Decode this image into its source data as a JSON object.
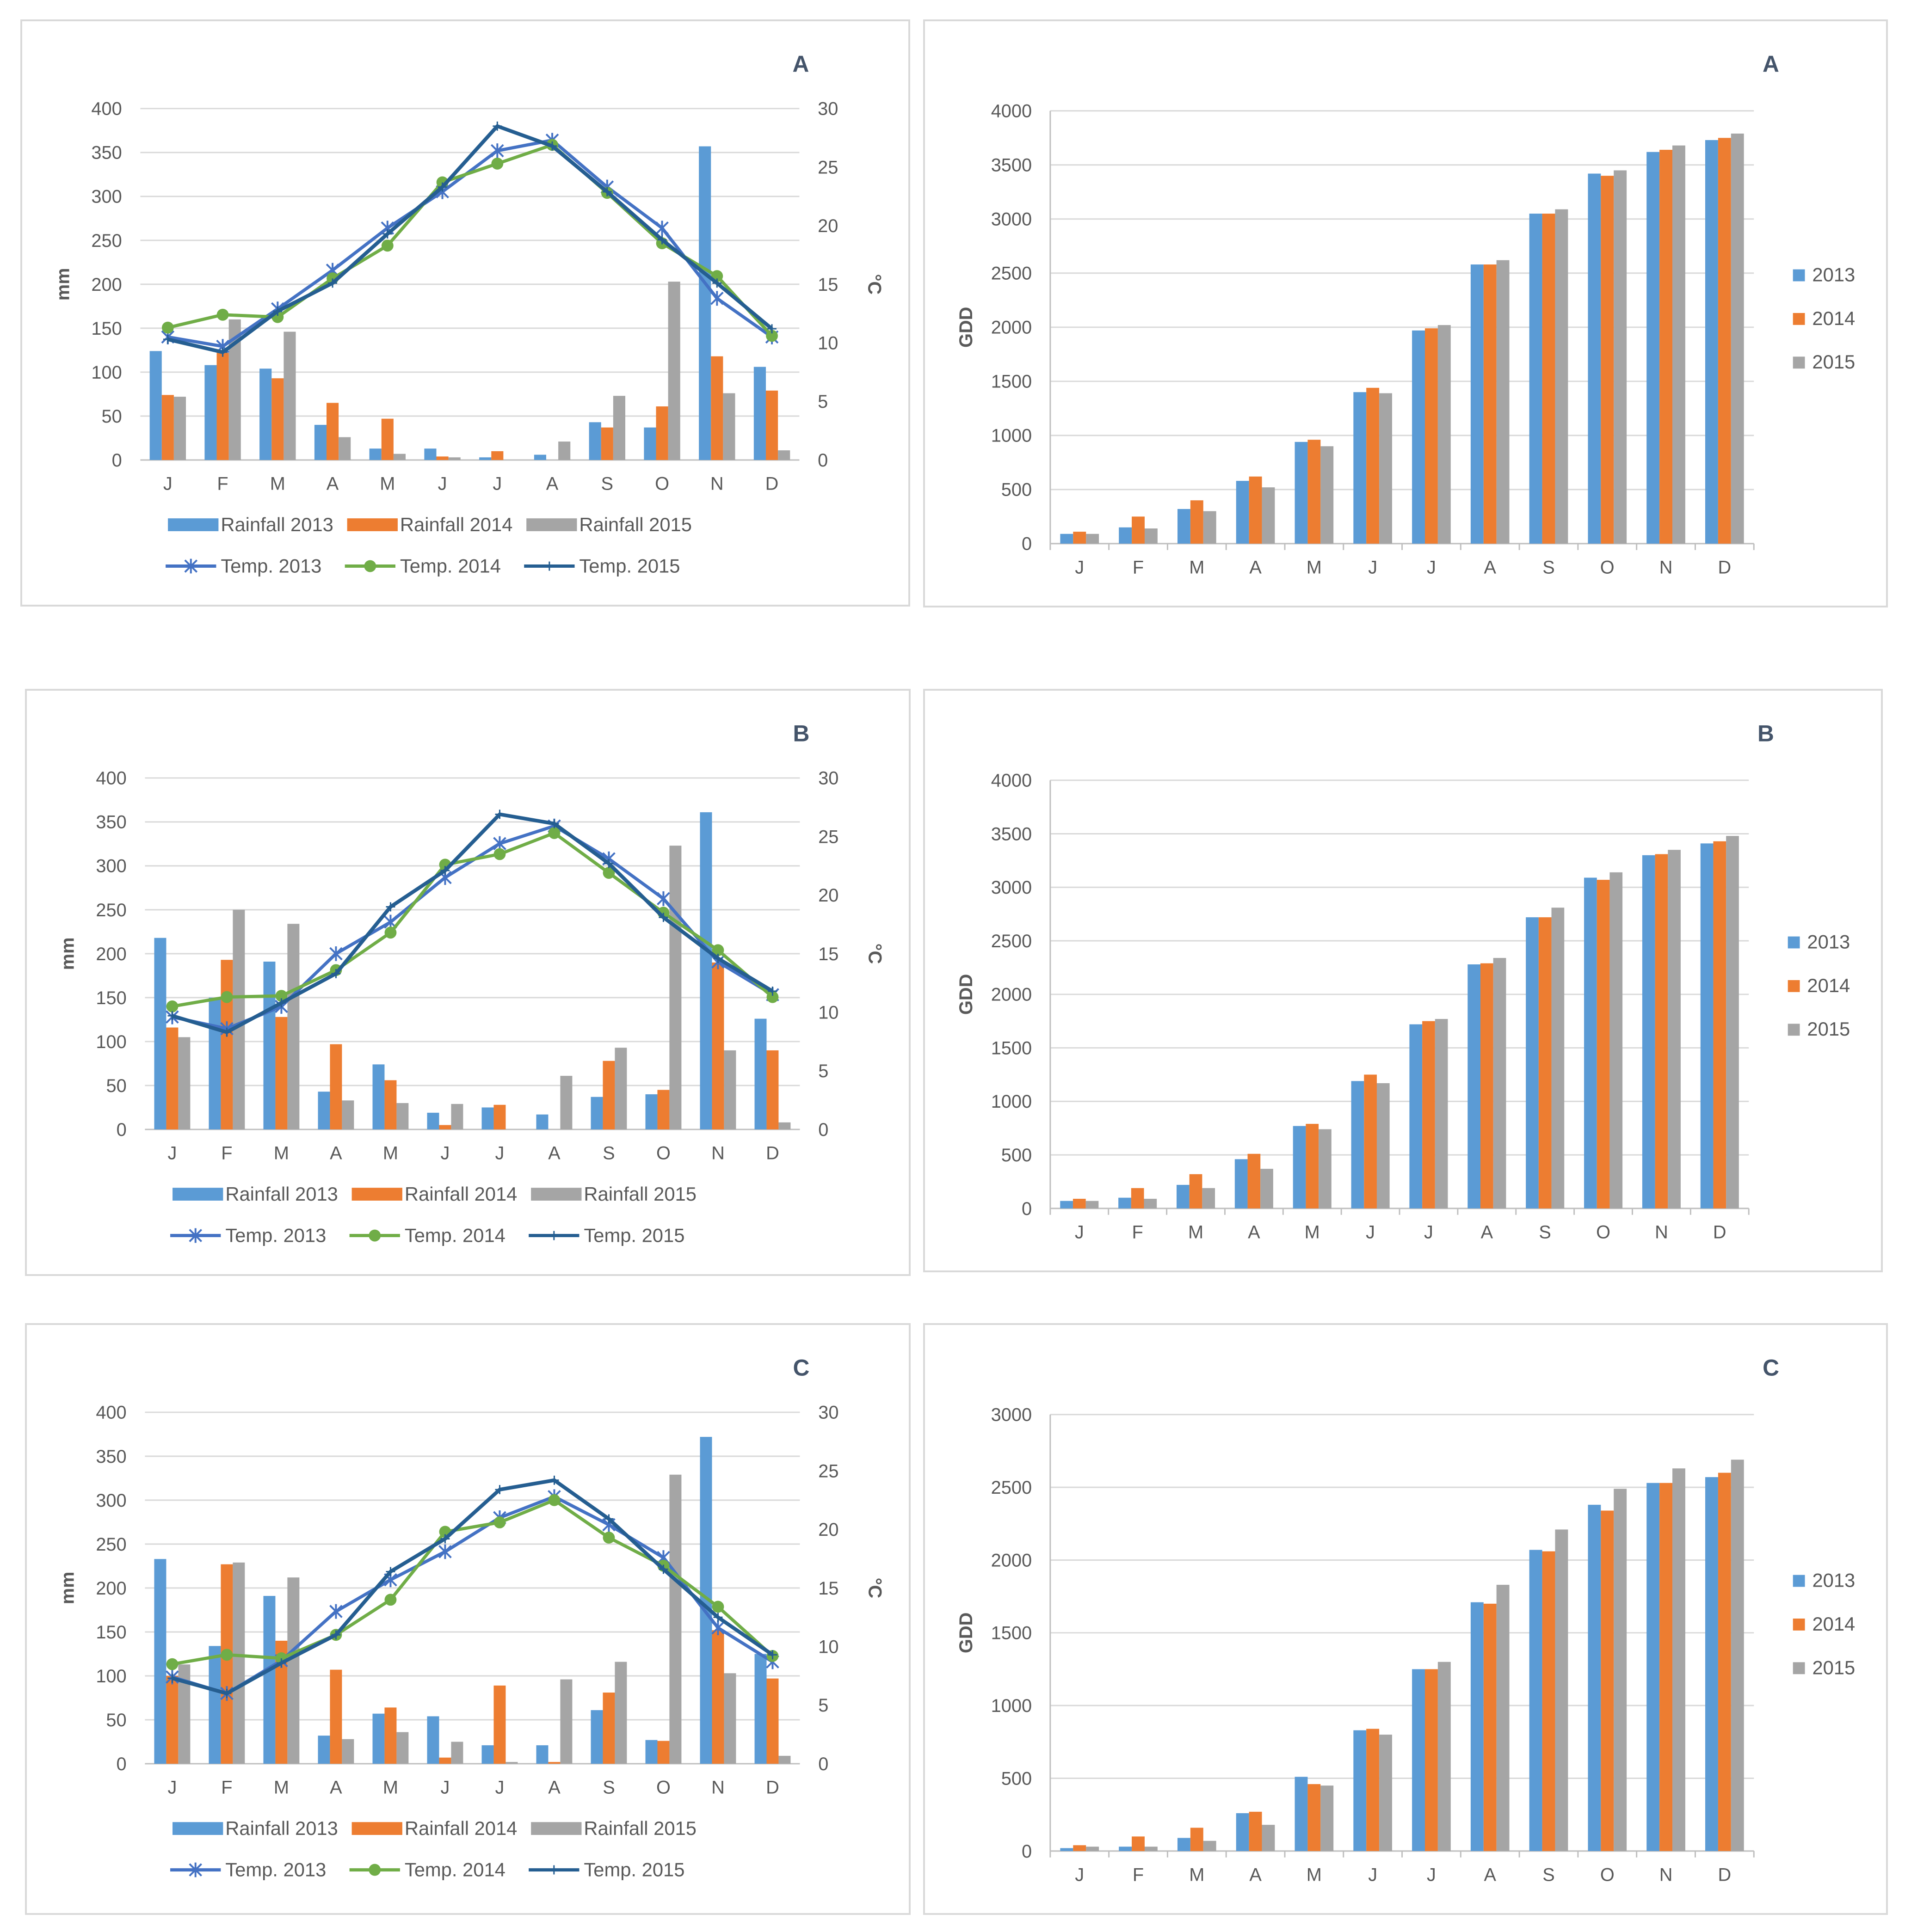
{
  "chart_data": [
    {
      "type": "bar+line",
      "panel_label": "A",
      "categories": [
        "J",
        "F",
        "M",
        "A",
        "M",
        "J",
        "J",
        "A",
        "S",
        "O",
        "N",
        "D"
      ],
      "ylabel": "mm",
      "y2label": "°C",
      "ylim": [
        0,
        400
      ],
      "y2lim": [
        0,
        30
      ],
      "yticks": [
        "0",
        "50",
        "100",
        "150",
        "200",
        "250",
        "300",
        "350",
        "400"
      ],
      "y2ticks": [
        "0",
        "5",
        "10",
        "15",
        "20",
        "25",
        "30"
      ],
      "series": [
        {
          "name": "Rainfall 2013",
          "kind": "bar",
          "color": "#5b9bd5",
          "values": [
            124,
            108,
            104,
            40,
            13,
            13,
            3,
            6,
            43,
            37,
            357,
            106
          ]
        },
        {
          "name": "Rainfall 2014",
          "kind": "bar",
          "color": "#ed7d31",
          "values": [
            74,
            122,
            93,
            65,
            47,
            4,
            10,
            0,
            37,
            61,
            118,
            79
          ]
        },
        {
          "name": "Rainfall 2015",
          "kind": "bar",
          "color": "#a5a5a5",
          "values": [
            72,
            160,
            146,
            26,
            7,
            3,
            0,
            21,
            73,
            203,
            76,
            11
          ]
        },
        {
          "name": "Temp. 2013",
          "kind": "line",
          "marker": "star",
          "color": "#4472c4",
          "values": [
            10.5,
            9.7,
            12.9,
            16.2,
            19.8,
            22.9,
            26.4,
            27.3,
            23.3,
            19.8,
            13.8,
            10.5
          ]
        },
        {
          "name": "Temp. 2014",
          "kind": "line",
          "marker": "dot",
          "color": "#70ad47",
          "values": [
            11.3,
            12.4,
            12.2,
            15.5,
            18.3,
            23.7,
            25.3,
            26.9,
            22.8,
            18.5,
            15.7,
            10.6
          ]
        },
        {
          "name": "Temp. 2015",
          "kind": "line",
          "marker": "plus",
          "color": "#255e91",
          "values": [
            10.3,
            9.2,
            12.7,
            15.1,
            19.3,
            23.3,
            28.5,
            26.8,
            22.9,
            18.8,
            15.1,
            11.2
          ]
        }
      ],
      "legend": [
        [
          "Rainfall 2013",
          "Rainfall 2014",
          "Rainfall 2015"
        ],
        [
          "Temp. 2013",
          "Temp. 2014",
          "Temp. 2015"
        ]
      ]
    },
    {
      "type": "bar",
      "panel_label": "A",
      "categories": [
        "J",
        "F",
        "M",
        "A",
        "M",
        "J",
        "J",
        "A",
        "S",
        "O",
        "N",
        "D"
      ],
      "ylabel": "GDD",
      "ylim": [
        0,
        4000
      ],
      "yticks": [
        "0",
        "500",
        "1000",
        "1500",
        "2000",
        "2500",
        "3000",
        "3500",
        "4000"
      ],
      "series": [
        {
          "name": "2013",
          "color": "#5b9bd5",
          "values": [
            90,
            150,
            320,
            580,
            940,
            1400,
            1970,
            2580,
            3050,
            3420,
            3620,
            3730
          ]
        },
        {
          "name": "2014",
          "color": "#ed7d31",
          "values": [
            110,
            250,
            400,
            620,
            960,
            1440,
            1990,
            2580,
            3050,
            3400,
            3640,
            3750
          ]
        },
        {
          "name": "2015",
          "color": "#a5a5a5",
          "values": [
            90,
            140,
            300,
            520,
            900,
            1390,
            2020,
            2620,
            3090,
            3450,
            3680,
            3790
          ]
        }
      ]
    },
    {
      "type": "bar+line",
      "panel_label": "B",
      "categories": [
        "J",
        "F",
        "M",
        "A",
        "M",
        "J",
        "J",
        "A",
        "S",
        "O",
        "N",
        "D"
      ],
      "ylabel": "mm",
      "y2label": "°C",
      "ylim": [
        0,
        400
      ],
      "y2lim": [
        0,
        30
      ],
      "yticks": [
        "0",
        "50",
        "100",
        "150",
        "200",
        "250",
        "300",
        "350",
        "400"
      ],
      "y2ticks": [
        "0",
        "5",
        "10",
        "15",
        "20",
        "25",
        "30"
      ],
      "series": [
        {
          "name": "Rainfall 2013",
          "kind": "bar",
          "color": "#5b9bd5",
          "values": [
            218,
            150,
            191,
            43,
            74,
            19,
            25,
            17,
            37,
            40,
            361,
            126
          ]
        },
        {
          "name": "Rainfall 2014",
          "kind": "bar",
          "color": "#ed7d31",
          "values": [
            116,
            193,
            128,
            97,
            56,
            5,
            28,
            0,
            78,
            45,
            190,
            90
          ]
        },
        {
          "name": "Rainfall 2015",
          "kind": "bar",
          "color": "#a5a5a5",
          "values": [
            105,
            250,
            234,
            33,
            30,
            29,
            0,
            61,
            93,
            323,
            90,
            8
          ]
        },
        {
          "name": "Temp. 2013",
          "kind": "line",
          "marker": "star",
          "color": "#4472c4",
          "values": [
            9.6,
            8.6,
            10.5,
            15.0,
            17.7,
            21.5,
            24.4,
            25.9,
            23.1,
            19.7,
            14.3,
            11.5
          ]
        },
        {
          "name": "Temp. 2014",
          "kind": "line",
          "marker": "dot",
          "color": "#70ad47",
          "values": [
            10.5,
            11.3,
            11.4,
            13.6,
            16.8,
            22.6,
            23.5,
            25.3,
            21.9,
            18.5,
            15.3,
            11.3
          ]
        },
        {
          "name": "Temp. 2015",
          "kind": "line",
          "marker": "plus",
          "color": "#255e91",
          "values": [
            9.7,
            8.3,
            10.8,
            13.3,
            19.0,
            22.1,
            26.9,
            26.1,
            22.7,
            18.1,
            14.6,
            11.8
          ]
        }
      ],
      "legend": [
        [
          "Rainfall 2013",
          "Rainfall 2014",
          "Rainfall 2015"
        ],
        [
          "Temp. 2013",
          "Temp. 2014",
          "Temp. 2015"
        ]
      ]
    },
    {
      "type": "bar",
      "panel_label": "B",
      "categories": [
        "J",
        "F",
        "M",
        "A",
        "M",
        "J",
        "J",
        "A",
        "S",
        "O",
        "N",
        "D"
      ],
      "ylabel": "GDD",
      "ylim": [
        0,
        4000
      ],
      "yticks": [
        "0",
        "500",
        "1000",
        "1500",
        "2000",
        "2500",
        "3000",
        "3500",
        "4000"
      ],
      "series": [
        {
          "name": "2013",
          "color": "#5b9bd5",
          "values": [
            70,
            100,
            220,
            460,
            770,
            1190,
            1720,
            2280,
            2720,
            3090,
            3300,
            3410
          ]
        },
        {
          "name": "2014",
          "color": "#ed7d31",
          "values": [
            90,
            190,
            320,
            510,
            790,
            1250,
            1750,
            2290,
            2720,
            3070,
            3310,
            3430
          ]
        },
        {
          "name": "2015",
          "color": "#a5a5a5",
          "values": [
            70,
            90,
            190,
            370,
            740,
            1170,
            1770,
            2340,
            2810,
            3140,
            3350,
            3480
          ]
        }
      ]
    },
    {
      "type": "bar+line",
      "panel_label": "C",
      "categories": [
        "J",
        "F",
        "M",
        "A",
        "M",
        "J",
        "J",
        "A",
        "S",
        "O",
        "N",
        "D"
      ],
      "ylabel": "mm",
      "y2label": "°C",
      "ylim": [
        0,
        400
      ],
      "y2lim": [
        0,
        30
      ],
      "yticks": [
        "0",
        "50",
        "100",
        "150",
        "200",
        "250",
        "300",
        "350",
        "400"
      ],
      "y2ticks": [
        "0",
        "5",
        "10",
        "15",
        "20",
        "25",
        "30"
      ],
      "series": [
        {
          "name": "Rainfall 2013",
          "kind": "bar",
          "color": "#5b9bd5",
          "values": [
            233,
            134,
            191,
            32,
            57,
            54,
            21,
            21,
            61,
            27,
            372,
            125
          ]
        },
        {
          "name": "Rainfall 2014",
          "kind": "bar",
          "color": "#ed7d31",
          "values": [
            100,
            227,
            140,
            107,
            64,
            7,
            89,
            2,
            81,
            26,
            152,
            97
          ]
        },
        {
          "name": "Rainfall 2015",
          "kind": "bar",
          "color": "#a5a5a5",
          "values": [
            113,
            229,
            212,
            28,
            36,
            25,
            2,
            96,
            116,
            329,
            103,
            9
          ]
        },
        {
          "name": "Temp. 2013",
          "kind": "line",
          "marker": "star",
          "color": "#4472c4",
          "values": [
            7.4,
            6.0,
            8.8,
            13.0,
            15.7,
            18.1,
            21.0,
            22.8,
            20.4,
            17.6,
            11.6,
            8.7
          ]
        },
        {
          "name": "Temp. 2014",
          "kind": "line",
          "marker": "dot",
          "color": "#70ad47",
          "values": [
            8.5,
            9.3,
            9.0,
            11.0,
            14.0,
            19.8,
            20.6,
            22.5,
            19.3,
            16.9,
            13.4,
            9.2
          ]
        },
        {
          "name": "Temp. 2015",
          "kind": "line",
          "marker": "plus",
          "color": "#255e91",
          "values": [
            7.3,
            6.0,
            8.6,
            11.0,
            16.4,
            19.2,
            23.4,
            24.2,
            20.9,
            16.6,
            12.5,
            9.3
          ]
        }
      ],
      "legend": [
        [
          "Rainfall 2013",
          "Rainfall 2014",
          "Rainfall 2015"
        ],
        [
          "Temp. 2013",
          "Temp. 2014",
          "Temp. 2015"
        ]
      ]
    },
    {
      "type": "bar",
      "panel_label": "C",
      "categories": [
        "J",
        "F",
        "M",
        "A",
        "M",
        "J",
        "J",
        "A",
        "S",
        "O",
        "N",
        "D"
      ],
      "ylabel": "GDD",
      "ylim": [
        0,
        3000
      ],
      "yticks": [
        "0",
        "500",
        "1000",
        "1500",
        "2000",
        "2500",
        "3000"
      ],
      "series": [
        {
          "name": "2013",
          "color": "#5b9bd5",
          "values": [
            20,
            30,
            90,
            260,
            510,
            830,
            1250,
            1710,
            2070,
            2380,
            2530,
            2570
          ]
        },
        {
          "name": "2014",
          "color": "#ed7d31",
          "values": [
            40,
            100,
            160,
            270,
            460,
            840,
            1250,
            1700,
            2060,
            2340,
            2530,
            2600
          ]
        },
        {
          "name": "2015",
          "color": "#a5a5a5",
          "values": [
            30,
            30,
            70,
            180,
            450,
            800,
            1300,
            1830,
            2210,
            2490,
            2630,
            2690
          ]
        }
      ]
    }
  ]
}
